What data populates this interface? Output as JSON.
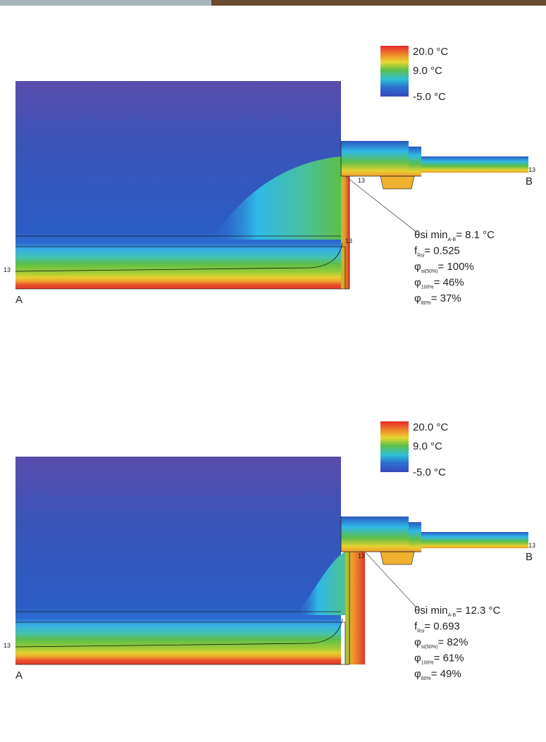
{
  "panels": [
    {
      "legend": [
        "20.0 °C",
        "9.0 °C",
        "-5.0 °C"
      ],
      "point_a": "A",
      "point_b": "B",
      "isotherm_labels": [
        "13",
        "13",
        "13",
        "13"
      ],
      "results": [
        {
          "symbol": "θsi min",
          "sub": "A-B",
          "value": "= 8.1 °C"
        },
        {
          "symbol": "f",
          "sub": "Rsi",
          "value": "= 0.525"
        },
        {
          "symbol": "φ",
          "sub": "si(50%)",
          "value": "= 100%"
        },
        {
          "symbol": "φ",
          "sub": "100%",
          "value": "= 46%"
        },
        {
          "symbol": "φ",
          "sub": "80%",
          "value": "= 37%"
        }
      ]
    },
    {
      "legend": [
        "20.0 °C",
        "9.0 °C",
        "-5.0 °C"
      ],
      "point_a": "A",
      "point_b": "B",
      "isotherm_labels": [
        "13",
        "13",
        "13"
      ],
      "results": [
        {
          "symbol": "θsi min",
          "sub": "A-B",
          "value": "= 12.3 °C"
        },
        {
          "symbol": "f",
          "sub": "Rsi",
          "value": "= 0.693"
        },
        {
          "symbol": "φ",
          "sub": "si(50%)",
          "value": "= 82%"
        },
        {
          "symbol": "φ",
          "sub": "100%",
          "value": "= 61%"
        },
        {
          "symbol": "φ",
          "sub": "80%",
          "value": "= 49%"
        }
      ]
    }
  ]
}
